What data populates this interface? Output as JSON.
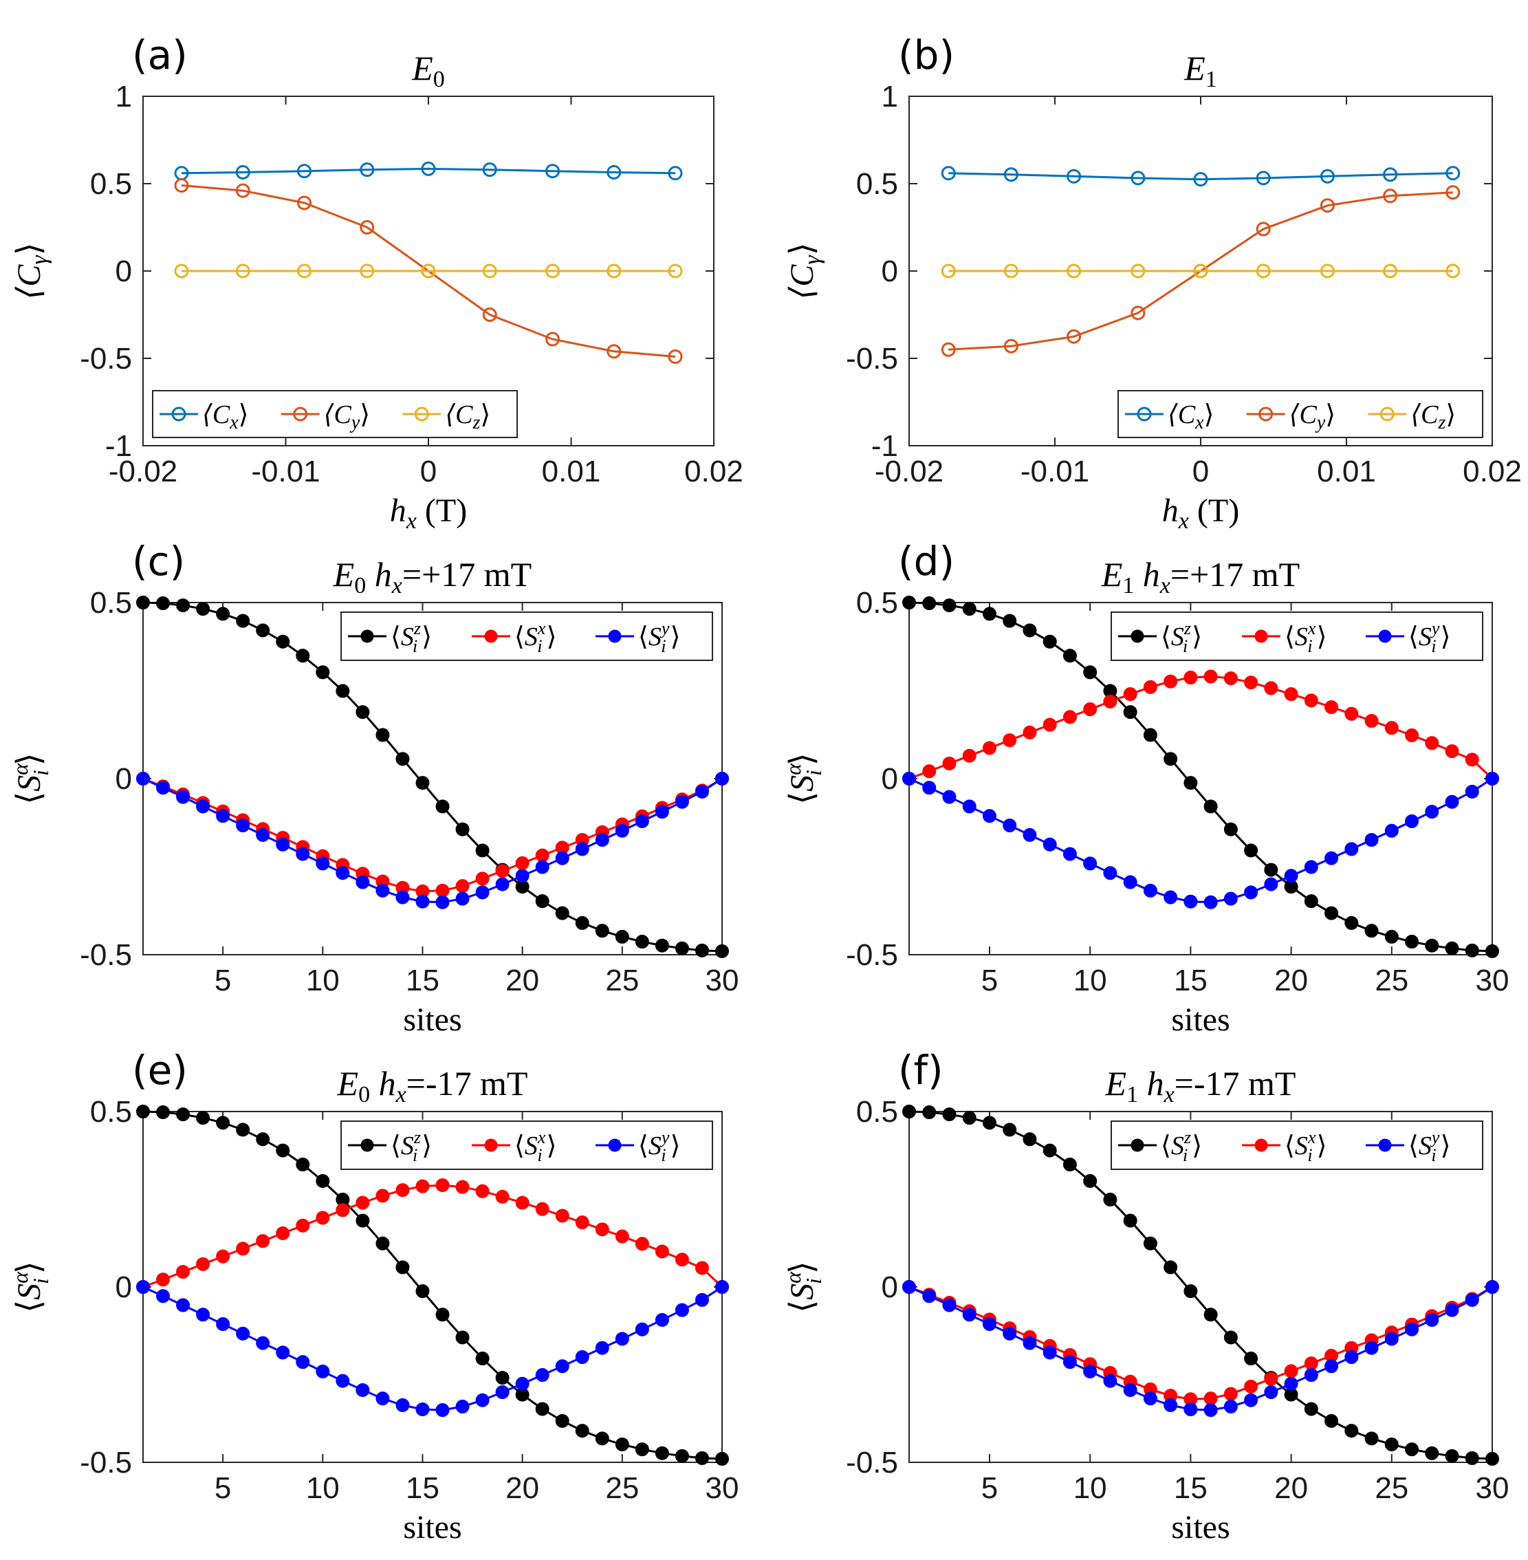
{
  "colors": {
    "Cx": "#0072BD",
    "Cy": "#D95319",
    "Cz": "#EDB120",
    "Sz": "#000000",
    "Sx": "#FF0000",
    "Sy": "#0000FF"
  },
  "chart_data": [
    {
      "panel": "(a)",
      "type": "line",
      "title": "E0",
      "title_main": "E",
      "title_sub": "0",
      "title_rest": "",
      "xlabel": "h_x (T)",
      "xlabel_main": "h",
      "xlabel_sub": "x",
      "xlabel_rest": " (T)",
      "ylabel": "⟨C_γ⟩",
      "ylabel_main": "⟨C",
      "ylabel_sub": "γ",
      "ylabel_end": "⟩",
      "xlim": [
        -0.02,
        0.02
      ],
      "ylim": [
        -1,
        1
      ],
      "xticks": [
        -0.02,
        -0.01,
        0,
        0.01,
        0.02
      ],
      "xtick_labels": [
        "-0.02",
        "-0.01",
        "0",
        "0.01",
        "0.02"
      ],
      "yticks": [
        -1,
        -0.5,
        0,
        0.5,
        1
      ],
      "ytick_labels": [
        "-1",
        "-0.5",
        "0",
        "0.5",
        "1"
      ],
      "marker": "open-circle",
      "legend_position": "bottom-left",
      "x": [
        -0.0173,
        -0.013,
        -0.0087,
        -0.0043,
        0,
        0.0043,
        0.0087,
        0.013,
        0.0173
      ],
      "series": [
        {
          "key": "Cx",
          "name": "⟨C_x⟩",
          "label_main": "⟨C",
          "label_sub": "x",
          "values": [
            0.56,
            0.565,
            0.572,
            0.58,
            0.585,
            0.58,
            0.572,
            0.565,
            0.56
          ]
        },
        {
          "key": "Cy",
          "name": "⟨C_y⟩",
          "label_main": "⟨C",
          "label_sub": "y",
          "values": [
            0.49,
            0.46,
            0.39,
            0.25,
            0,
            -0.25,
            -0.39,
            -0.46,
            -0.49
          ]
        },
        {
          "key": "Cz",
          "name": "⟨C_z⟩",
          "label_main": "⟨C",
          "label_sub": "z",
          "values": [
            0,
            0,
            0,
            0,
            0,
            0,
            0,
            0,
            0
          ]
        }
      ]
    },
    {
      "panel": "(b)",
      "type": "line",
      "title": "E1",
      "title_main": "E",
      "title_sub": "1",
      "title_rest": "",
      "xlabel": "h_x (T)",
      "xlabel_main": "h",
      "xlabel_sub": "x",
      "xlabel_rest": " (T)",
      "ylabel": "⟨C_γ⟩",
      "ylabel_main": "⟨C",
      "ylabel_sub": "γ",
      "ylabel_end": "⟩",
      "xlim": [
        -0.02,
        0.02
      ],
      "ylim": [
        -1,
        1
      ],
      "xticks": [
        -0.02,
        -0.01,
        0,
        0.01,
        0.02
      ],
      "xtick_labels": [
        "-0.02",
        "-0.01",
        "0",
        "0.01",
        "0.02"
      ],
      "yticks": [
        -1,
        -0.5,
        0,
        0.5,
        1
      ],
      "ytick_labels": [
        "-1",
        "-0.5",
        "0",
        "0.5",
        "1"
      ],
      "marker": "open-circle",
      "legend_position": "bottom-right",
      "x": [
        -0.0173,
        -0.013,
        -0.0087,
        -0.0043,
        0,
        0.0043,
        0.0087,
        0.013,
        0.0173
      ],
      "series": [
        {
          "key": "Cx",
          "name": "⟨C_x⟩",
          "label_main": "⟨C",
          "label_sub": "x",
          "values": [
            0.56,
            0.552,
            0.542,
            0.532,
            0.525,
            0.532,
            0.542,
            0.552,
            0.56
          ]
        },
        {
          "key": "Cy",
          "name": "⟨C_y⟩",
          "label_main": "⟨C",
          "label_sub": "y",
          "values": [
            -0.45,
            -0.43,
            -0.375,
            -0.24,
            0,
            0.24,
            0.375,
            0.43,
            0.45
          ]
        },
        {
          "key": "Cz",
          "name": "⟨C_z⟩",
          "label_main": "⟨C",
          "label_sub": "z",
          "values": [
            0,
            0,
            0,
            0,
            0,
            0,
            0,
            0,
            0
          ]
        }
      ]
    },
    {
      "panel": "(c)",
      "type": "line",
      "title": "E0 h_x=+17 mT",
      "title_main": "E",
      "title_sub": "0",
      "title_rest": " h",
      "title_sub2": "x",
      "title_end": "=+17 mT",
      "xlabel": "sites",
      "ylabel": "⟨S_i^α⟩",
      "xlim": [
        1,
        30
      ],
      "ylim": [
        -0.5,
        0.5
      ],
      "xticks": [
        5,
        10,
        15,
        20,
        25,
        30
      ],
      "xtick_labels": [
        "5",
        "10",
        "15",
        "20",
        "25",
        "30"
      ],
      "yticks": [
        -0.5,
        0,
        0.5
      ],
      "ytick_labels": [
        "-0.5",
        "0",
        "0.5"
      ],
      "marker": "filled-circle",
      "legend_position": "top-right",
      "profile": {
        "xi": "low",
        "yi": "low"
      },
      "series": [
        {
          "key": "Sz",
          "name": "⟨S_i^z⟩",
          "sup": "z"
        },
        {
          "key": "Sx",
          "name": "⟨S_i^x⟩",
          "sup": "x"
        },
        {
          "key": "Sy",
          "name": "⟨S_i^y⟩",
          "sup": "y"
        }
      ]
    },
    {
      "panel": "(d)",
      "type": "line",
      "title": "E1 h_x=+17 mT",
      "title_main": "E",
      "title_sub": "1",
      "title_rest": " h",
      "title_sub2": "x",
      "title_end": "=+17 mT",
      "xlabel": "sites",
      "ylabel": "⟨S_i^α⟩",
      "xlim": [
        1,
        30
      ],
      "ylim": [
        -0.5,
        0.5
      ],
      "xticks": [
        5,
        10,
        15,
        20,
        25,
        30
      ],
      "xtick_labels": [
        "5",
        "10",
        "15",
        "20",
        "25",
        "30"
      ],
      "yticks": [
        -0.5,
        0,
        0.5
      ],
      "ytick_labels": [
        "-0.5",
        "0",
        "0.5"
      ],
      "marker": "filled-circle",
      "legend_position": "top-right",
      "profile": {
        "xi": "high",
        "yi": "low"
      },
      "series": [
        {
          "key": "Sz",
          "name": "⟨S_i^z⟩",
          "sup": "z"
        },
        {
          "key": "Sx",
          "name": "⟨S_i^x⟩",
          "sup": "x"
        },
        {
          "key": "Sy",
          "name": "⟨S_i^y⟩",
          "sup": "y"
        }
      ]
    },
    {
      "panel": "(e)",
      "type": "line",
      "title": "E0 h_x=-17 mT",
      "title_main": "E",
      "title_sub": "0",
      "title_rest": " h",
      "title_sub2": "x",
      "title_end": "=-17 mT",
      "xlabel": "sites",
      "ylabel": "⟨S_i^α⟩",
      "xlim": [
        1,
        30
      ],
      "ylim": [
        -0.5,
        0.5
      ],
      "xticks": [
        5,
        10,
        15,
        20,
        25,
        30
      ],
      "xtick_labels": [
        "5",
        "10",
        "15",
        "20",
        "25",
        "30"
      ],
      "yticks": [
        -0.5,
        0,
        0.5
      ],
      "ytick_labels": [
        "-0.5",
        "0",
        "0.5"
      ],
      "marker": "filled-circle",
      "legend_position": "top-right",
      "profile": {
        "xi": "high",
        "yi": "low"
      },
      "series": [
        {
          "key": "Sz",
          "name": "⟨S_i^z⟩",
          "sup": "z"
        },
        {
          "key": "Sx",
          "name": "⟨S_i^x⟩",
          "sup": "x"
        },
        {
          "key": "Sy",
          "name": "⟨S_i^y⟩",
          "sup": "y"
        }
      ]
    },
    {
      "panel": "(f)",
      "type": "line",
      "title": "E1 h_x=-17 mT",
      "title_main": "E",
      "title_sub": "1",
      "title_rest": " h",
      "title_sub2": "x",
      "title_end": "=-17 mT",
      "xlabel": "sites",
      "ylabel": "⟨S_i^α⟩",
      "xlim": [
        1,
        30
      ],
      "ylim": [
        -0.5,
        0.5
      ],
      "xticks": [
        5,
        10,
        15,
        20,
        25,
        30
      ],
      "xtick_labels": [
        "5",
        "10",
        "15",
        "20",
        "25",
        "30"
      ],
      "yticks": [
        -0.5,
        0,
        0.5
      ],
      "ytick_labels": [
        "-0.5",
        "0",
        "0.5"
      ],
      "marker": "filled-circle",
      "legend_position": "top-right",
      "profile": {
        "xi": "low",
        "yi": "low"
      },
      "series": [
        {
          "key": "Sz",
          "name": "⟨S_i^z⟩",
          "sup": "z"
        },
        {
          "key": "Sx",
          "name": "⟨S_i^x⟩",
          "sup": "x"
        },
        {
          "key": "Sy",
          "name": "⟨S_i^y⟩",
          "sup": "y"
        }
      ]
    }
  ],
  "site_profiles": {
    "sites": [
      1,
      2,
      3,
      4,
      5,
      6,
      7,
      8,
      9,
      10,
      11,
      12,
      13,
      14,
      15,
      16,
      17,
      18,
      19,
      20,
      21,
      22,
      23,
      24,
      25,
      26,
      27,
      28,
      29,
      30
    ],
    "Sz": [
      0.5,
      0.498,
      0.492,
      0.482,
      0.468,
      0.448,
      0.421,
      0.389,
      0.349,
      0.302,
      0.249,
      0.189,
      0.124,
      0.056,
      -0.012,
      -0.079,
      -0.144,
      -0.204,
      -0.259,
      -0.307,
      -0.348,
      -0.382,
      -0.41,
      -0.432,
      -0.449,
      -0.463,
      -0.474,
      -0.482,
      -0.488,
      -0.49
    ],
    "S_high": [
      0,
      0.021,
      0.043,
      0.065,
      0.087,
      0.109,
      0.131,
      0.153,
      0.175,
      0.197,
      0.219,
      0.24,
      0.26,
      0.276,
      0.287,
      0.29,
      0.285,
      0.273,
      0.257,
      0.24,
      0.222,
      0.203,
      0.184,
      0.164,
      0.144,
      0.123,
      0.101,
      0.078,
      0.054,
      0.0
    ],
    "S_low": [
      0,
      -0.022,
      -0.045,
      -0.069,
      -0.093,
      -0.118,
      -0.143,
      -0.168,
      -0.194,
      -0.22,
      -0.245,
      -0.27,
      -0.292,
      -0.31,
      -0.32,
      -0.318,
      -0.305,
      -0.284,
      -0.262,
      -0.24,
      -0.218,
      -0.196,
      -0.174,
      -0.152,
      -0.13,
      -0.107,
      -0.083,
      -0.059,
      -0.034,
      0.0
    ],
    "Sy_low": [
      0,
      -0.026,
      -0.052,
      -0.079,
      -0.106,
      -0.133,
      -0.16,
      -0.187,
      -0.214,
      -0.241,
      -0.268,
      -0.294,
      -0.318,
      -0.337,
      -0.349,
      -0.351,
      -0.341,
      -0.323,
      -0.3,
      -0.276,
      -0.251,
      -0.226,
      -0.2,
      -0.174,
      -0.148,
      -0.121,
      -0.094,
      -0.066,
      -0.037,
      0.0
    ]
  }
}
